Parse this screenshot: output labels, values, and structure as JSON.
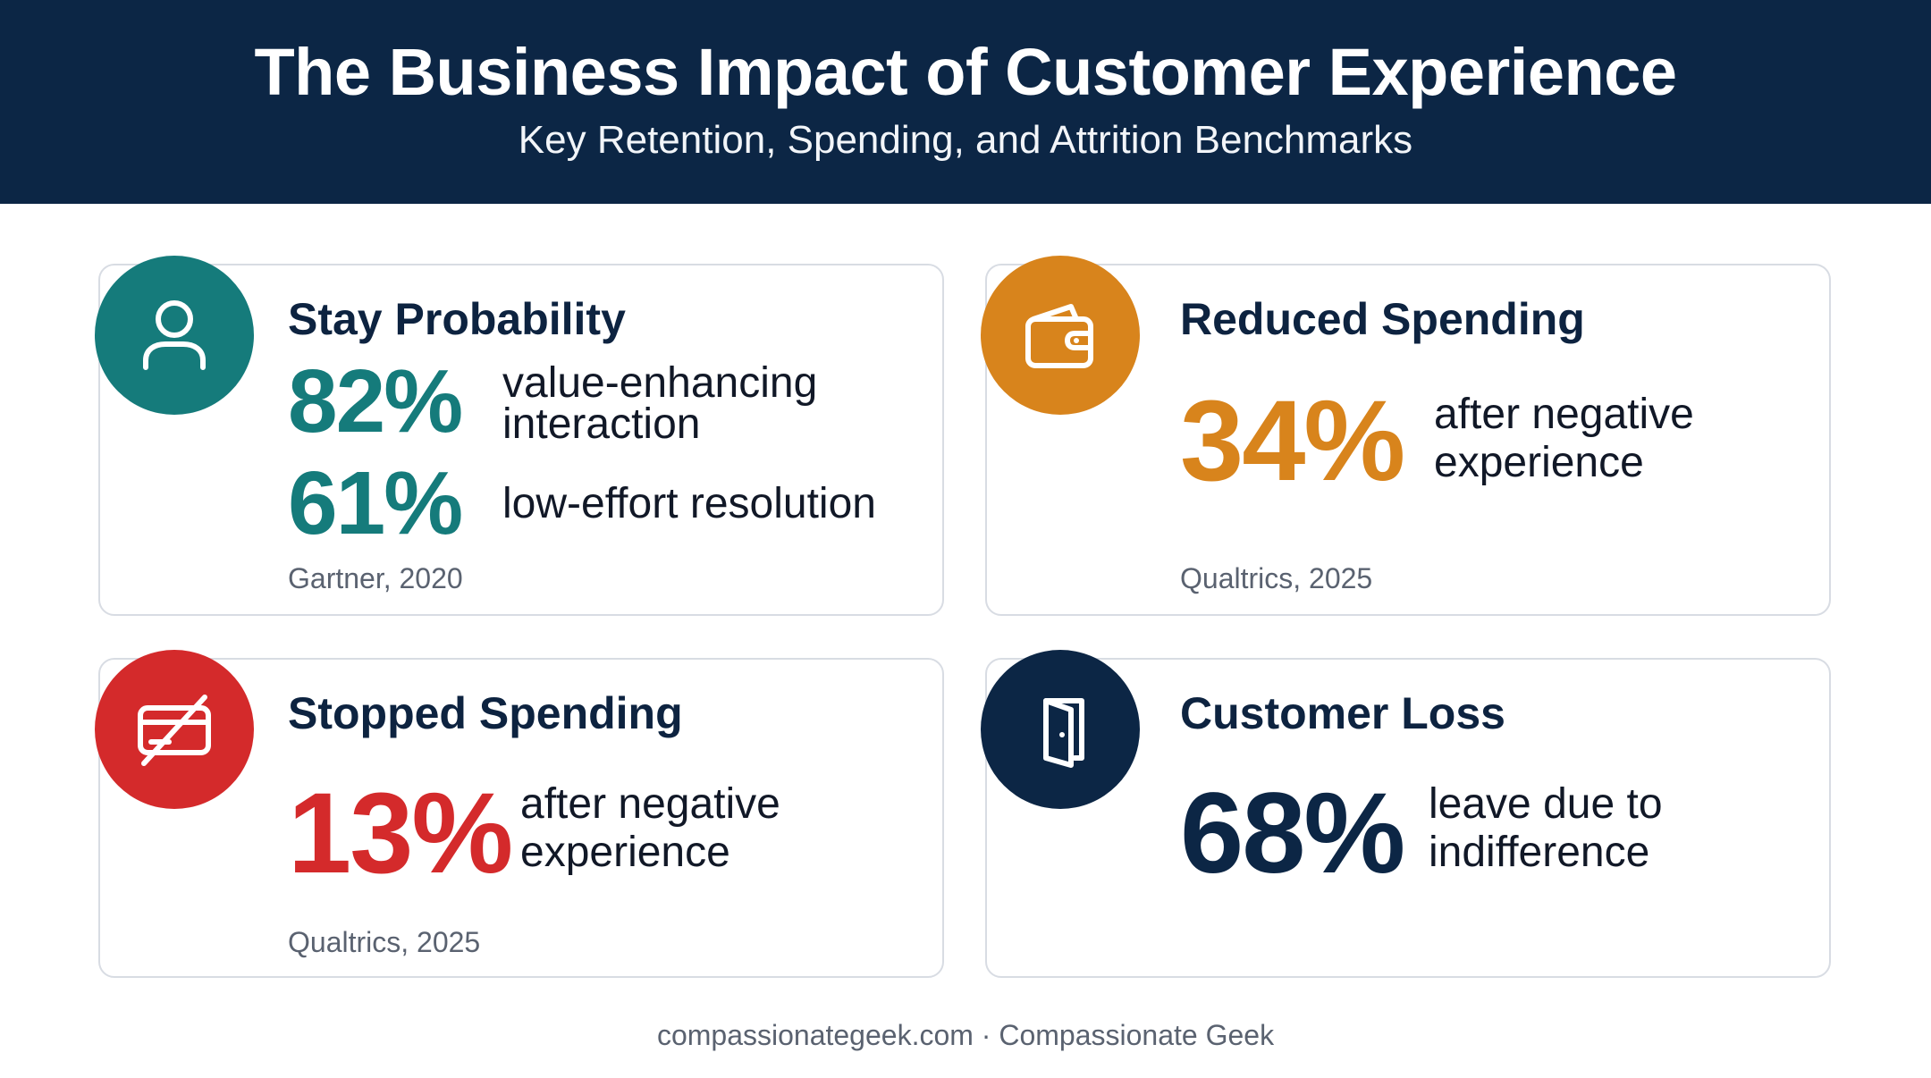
{
  "header": {
    "title": "The Business Impact of Customer Experience",
    "subtitle": "Key Retention, Spending, and Attrition Benchmarks"
  },
  "colors": {
    "header_bg": "#0c2645",
    "teal": "#157b7b",
    "orange": "#d8841c",
    "red": "#d42a2b",
    "navy": "#0c2645"
  },
  "cards": {
    "stay": {
      "icon": "person-icon",
      "title": "Stay Probability",
      "stats": [
        {
          "value": "82%",
          "line1": "value-enhancing",
          "line2": "interaction"
        },
        {
          "value": "61%",
          "line1": "low-effort resolution"
        }
      ],
      "source": "Gartner, 2020"
    },
    "reduced": {
      "icon": "wallet-icon",
      "title": "Reduced Spending",
      "value": "34%",
      "line1": "after negative",
      "line2": "experience",
      "source": "Qualtrics, 2025"
    },
    "stopped": {
      "icon": "card-slash-icon",
      "title": "Stopped Spending",
      "value": "13%",
      "line1": "after negative",
      "line2": "experience",
      "source": "Qualtrics, 2025"
    },
    "loss": {
      "icon": "door-icon",
      "title": "Customer Loss",
      "value": "68%",
      "line1": "leave due to",
      "line2": "indifference"
    }
  },
  "footer": {
    "text": "compassionategeek.com · Compassionate Geek"
  }
}
